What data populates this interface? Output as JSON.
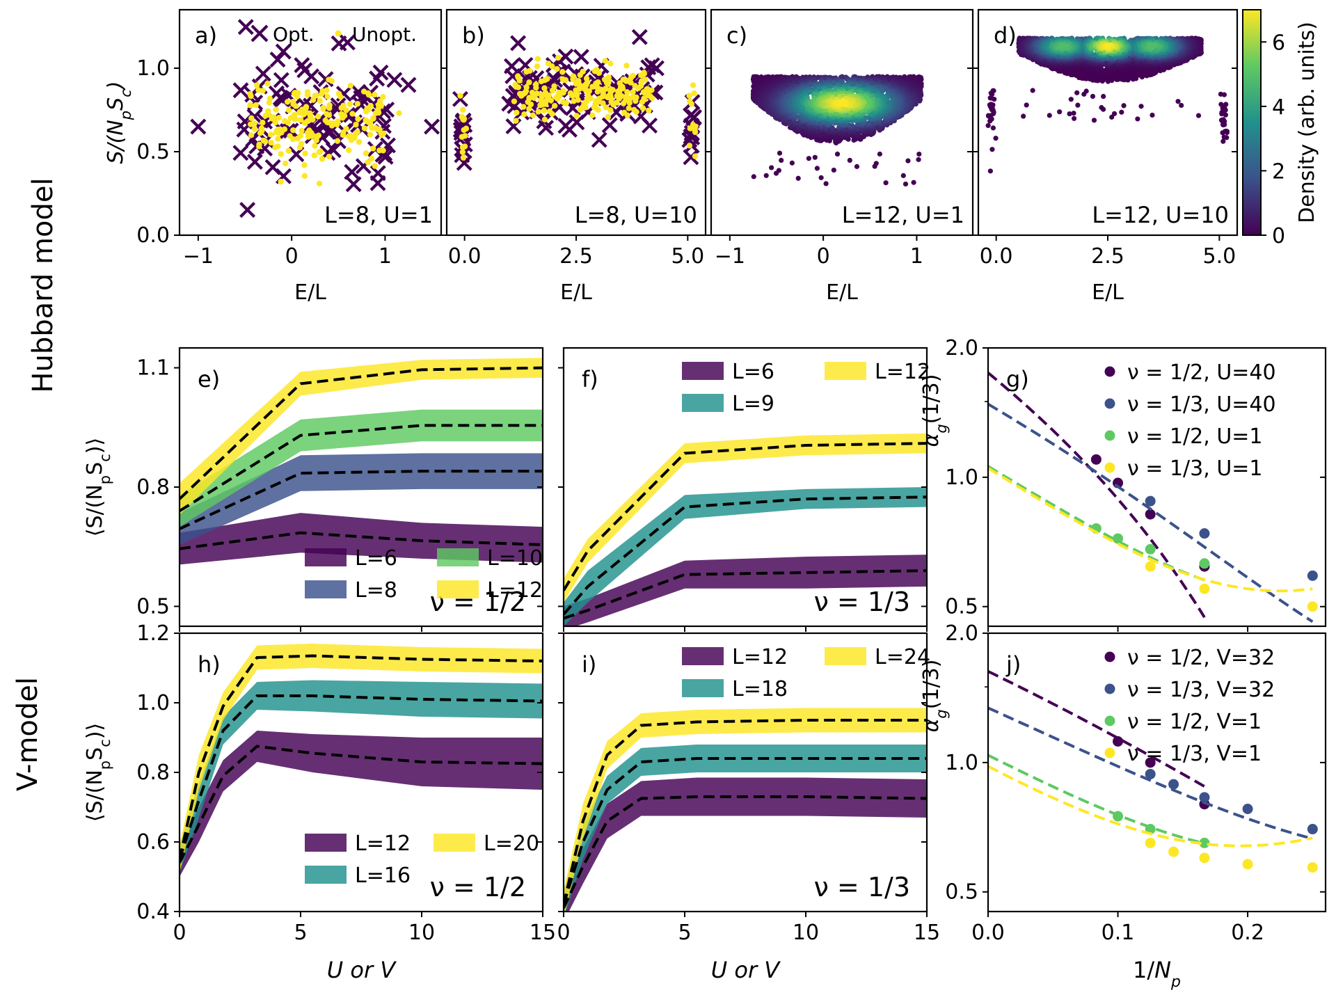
{
  "figure": {
    "row_labels": [
      "Hubbard model",
      "V-model"
    ],
    "colors": {
      "viridis_dark": "#440154",
      "viridis_blue": "#3b528b",
      "viridis_teal": "#21918c",
      "viridis_green": "#5ec962",
      "viridis_yellow": "#fde725",
      "dashed_line": "#000000"
    }
  },
  "chart_data": [
    {
      "id": "a",
      "panel_label": "a)",
      "type": "scatter",
      "annotation": "L=8, U=1",
      "xlabel": "E/L",
      "ylabel": "S/(N_p S_c)",
      "xlim": [
        -1.2,
        1.6
      ],
      "ylim": [
        0.0,
        1.35
      ],
      "xticks": [
        {
          "v": -1,
          "t": "−1"
        },
        {
          "v": 0,
          "t": "0"
        },
        {
          "v": 1,
          "t": "1"
        }
      ],
      "yticks": [
        {
          "v": 0.0,
          "t": "0.0"
        },
        {
          "v": 0.5,
          "t": "0.5"
        },
        {
          "v": 1.0,
          "t": "1.0"
        }
      ],
      "legend": [
        "Opt.",
        "Unopt."
      ],
      "cloud": {
        "x_range": [
          -0.55,
          1.1
        ],
        "y_center": 0.68,
        "y_spread": 0.2,
        "n_opt": 90,
        "n_unopt": 200
      },
      "opt_points": [
        [
          -1.0,
          0.65
        ],
        [
          1.5,
          0.65
        ],
        [
          1.1,
          0.93
        ],
        [
          1.25,
          0.9
        ]
      ],
      "unopt_points": [
        [
          1.15,
          0.73
        ]
      ]
    },
    {
      "id": "b",
      "panel_label": "b)",
      "type": "scatter",
      "annotation": "L=8, U=10",
      "xlabel": "E/L",
      "ylabel": "",
      "xlim": [
        -0.4,
        5.4
      ],
      "ylim": [
        0.0,
        1.35
      ],
      "xticks": [
        {
          "v": 0.0,
          "t": "0.0"
        },
        {
          "v": 2.5,
          "t": "2.5"
        },
        {
          "v": 5.0,
          "t": "5.0"
        }
      ],
      "yticks": [
        {
          "v": 0.0,
          "t": ""
        },
        {
          "v": 0.5,
          "t": ""
        },
        {
          "v": 1.0,
          "t": ""
        }
      ],
      "cloud": {
        "x_range": [
          1.0,
          4.3
        ],
        "y_center": 0.86,
        "y_spread": 0.12,
        "n_opt": 90,
        "n_unopt": 220
      },
      "clusters": [
        {
          "x": -0.05,
          "y": 0.6,
          "n": 14
        },
        {
          "x": 5.1,
          "y": 0.66,
          "n": 12
        }
      ],
      "opt_points": [
        [
          1.2,
          1.15
        ],
        [
          4.3,
          1.0
        ]
      ]
    },
    {
      "id": "c",
      "panel_label": "c)",
      "type": "density-scatter",
      "annotation": "L=12, U=1",
      "xlabel": "E/L",
      "ylabel": "",
      "xlim": [
        -1.2,
        1.6
      ],
      "ylim": [
        0.0,
        1.35
      ],
      "xticks": [
        {
          "v": -1,
          "t": "−1"
        },
        {
          "v": 0,
          "t": "0"
        },
        {
          "v": 1,
          "t": "1"
        }
      ],
      "yticks": [
        {
          "v": 0.0,
          "t": ""
        },
        {
          "v": 0.5,
          "t": ""
        },
        {
          "v": 1.0,
          "t": ""
        }
      ],
      "blob": {
        "x_range": [
          -0.75,
          1.05
        ],
        "y_top": 0.95,
        "y_bottom": 0.55,
        "peak_x": 0.2,
        "peak_y": 0.79
      }
    },
    {
      "id": "d",
      "panel_label": "d)",
      "type": "density-scatter",
      "annotation": "L=12, U=10",
      "xlabel": "E/L",
      "ylabel": "",
      "xlim": [
        -0.4,
        5.4
      ],
      "ylim": [
        0.0,
        1.35
      ],
      "xticks": [
        {
          "v": 0.0,
          "t": "0.0"
        },
        {
          "v": 2.5,
          "t": "2.5"
        },
        {
          "v": 5.0,
          "t": "5.0"
        }
      ],
      "yticks": [
        {
          "v": 0.0,
          "t": ""
        },
        {
          "v": 0.5,
          "t": ""
        },
        {
          "v": 1.0,
          "t": ""
        }
      ],
      "blob": {
        "x_range": [
          0.5,
          4.6
        ],
        "y_top": 1.18,
        "y_bottom": 0.92,
        "peaks_x": [
          1.5,
          2.5,
          3.5
        ],
        "peak_y": 1.13
      },
      "clusters": [
        {
          "x": -0.1,
          "y": 0.72,
          "n": 30
        },
        {
          "x": 5.1,
          "y": 0.72,
          "n": 30
        }
      ]
    },
    {
      "id": "colorbar",
      "type": "colorbar",
      "label": "Density (arb. units)",
      "range": [
        0,
        7
      ],
      "ticks": [
        "0",
        "2",
        "4",
        "6"
      ]
    },
    {
      "id": "e",
      "panel_label": "e)",
      "type": "line-band",
      "annotation": "ν = 1/2",
      "xlabel": "",
      "ylabel": "⟨S/(N_p S_c)⟩",
      "xlim": [
        0,
        15
      ],
      "ylim": [
        0.45,
        1.15
      ],
      "xticks": [
        {
          "v": 0,
          "t": ""
        },
        {
          "v": 5,
          "t": ""
        },
        {
          "v": 10,
          "t": ""
        },
        {
          "v": 15,
          "t": ""
        }
      ],
      "yticks": [
        {
          "v": 0.5,
          "t": "0.5"
        },
        {
          "v": 0.8,
          "t": "0.8"
        },
        {
          "v": 1.1,
          "t": "1.1"
        }
      ],
      "x": [
        0,
        5,
        10,
        15
      ],
      "series": [
        {
          "name": "L=6",
          "color": "#440154",
          "values": [
            0.645,
            0.685,
            0.665,
            0.655
          ],
          "band": [
            0.04,
            0.05,
            0.045,
            0.045
          ]
        },
        {
          "name": "L=8",
          "color": "#3b528b",
          "values": [
            0.695,
            0.835,
            0.84,
            0.84
          ],
          "band": [
            0.04,
            0.045,
            0.045,
            0.045
          ]
        },
        {
          "name": "L=10",
          "color": "#5ec962",
          "values": [
            0.74,
            0.93,
            0.955,
            0.955
          ],
          "band": [
            0.04,
            0.04,
            0.04,
            0.04
          ]
        },
        {
          "name": "L=12",
          "color": "#fde725",
          "values": [
            0.77,
            1.06,
            1.095,
            1.1
          ],
          "band": [
            0.04,
            0.03,
            0.025,
            0.025
          ]
        }
      ],
      "legend_position": "lower-right"
    },
    {
      "id": "f",
      "panel_label": "f)",
      "type": "line-band",
      "annotation": "ν = 1/3",
      "xlabel": "",
      "ylabel": "",
      "xlim": [
        0,
        15
      ],
      "ylim": [
        0.45,
        1.15
      ],
      "xticks": [
        {
          "v": 0,
          "t": ""
        },
        {
          "v": 5,
          "t": ""
        },
        {
          "v": 10,
          "t": ""
        },
        {
          "v": 15,
          "t": ""
        }
      ],
      "yticks": [
        {
          "v": 0.5,
          "t": ""
        },
        {
          "v": 0.8,
          "t": ""
        },
        {
          "v": 1.1,
          "t": ""
        }
      ],
      "x": [
        0,
        1,
        5,
        10,
        15
      ],
      "series": [
        {
          "name": "L=6",
          "color": "#440154",
          "values": [
            0.47,
            0.49,
            0.58,
            0.585,
            0.59
          ],
          "band": [
            0.03,
            0.03,
            0.035,
            0.04,
            0.04
          ]
        },
        {
          "name": "L=9",
          "color": "#21918c",
          "values": [
            0.48,
            0.55,
            0.75,
            0.77,
            0.775
          ],
          "band": [
            0.03,
            0.04,
            0.03,
            0.025,
            0.025
          ]
        },
        {
          "name": "L=12",
          "color": "#fde725",
          "values": [
            0.54,
            0.64,
            0.885,
            0.905,
            0.91
          ],
          "band": [
            0.03,
            0.03,
            0.025,
            0.025,
            0.025
          ]
        }
      ],
      "legend_position": "upper-right"
    },
    {
      "id": "g",
      "panel_label": "g)",
      "type": "scatter-fit",
      "xlabel": "",
      "ylabel": "α_g(1/3)",
      "xlim": [
        0,
        0.26
      ],
      "ylim": [
        0.45,
        2.0
      ],
      "yscale": "log",
      "xticks": [
        {
          "v": 0,
          "t": ""
        },
        {
          "v": 0.1,
          "t": ""
        },
        {
          "v": 0.2,
          "t": ""
        }
      ],
      "yticks": [
        {
          "v": 0.5,
          "t": "0.5"
        },
        {
          "v": 1.0,
          "t": "1.0"
        },
        {
          "v": 2.0,
          "t": "2.0"
        }
      ],
      "series": [
        {
          "name": "ν = 1/2, U=40",
          "color": "#440154",
          "x": [
            0.0833,
            0.1,
            0.125,
            0.1667
          ],
          "y": [
            1.1,
            0.97,
            0.82,
            0.62
          ],
          "fit": [
            1.75,
            -10.0,
            14.0
          ]
        },
        {
          "name": "ν = 1/3, U=40",
          "color": "#3b528b",
          "x": [
            0.125,
            0.1667,
            0.25
          ],
          "y": [
            0.88,
            0.74,
            0.59
          ],
          "fit": [
            1.48,
            -6.1,
            8.1
          ]
        },
        {
          "name": "ν = 1/2, U=1",
          "color": "#5ec962",
          "x": [
            0.0833,
            0.1,
            0.125,
            0.1667
          ],
          "y": [
            0.76,
            0.72,
            0.68,
            0.63
          ],
          "fit": [
            1.06,
            -4.4,
            9.0
          ]
        },
        {
          "name": "ν = 1/3, U=1",
          "color": "#fde725",
          "x": [
            0.125,
            0.1667,
            0.25
          ],
          "y": [
            0.62,
            0.55,
            0.5
          ],
          "fit": [
            1.05,
            -4.5,
            10.0
          ]
        }
      ]
    },
    {
      "id": "h",
      "panel_label": "h)",
      "type": "line-band",
      "annotation": "ν = 1/2",
      "xlabel": "U or V",
      "ylabel": "⟨S/(N_p S_c)⟩",
      "xlim": [
        0,
        15
      ],
      "ylim": [
        0.4,
        1.2
      ],
      "xticks": [
        {
          "v": 0,
          "t": "0"
        },
        {
          "v": 5,
          "t": "5"
        },
        {
          "v": 10,
          "t": "10"
        },
        {
          "v": 15,
          "t": "15"
        }
      ],
      "yticks": [
        {
          "v": 0.4,
          "t": "0.4"
        },
        {
          "v": 0.6,
          "t": "0.6"
        },
        {
          "v": 0.8,
          "t": "0.8"
        },
        {
          "v": 1.0,
          "t": "1.0"
        },
        {
          "v": 1.2,
          "t": "1.2"
        }
      ],
      "x": [
        0,
        0.8,
        1.8,
        3.2,
        5.5,
        10,
        15
      ],
      "series": [
        {
          "name": "L=12",
          "color": "#440154",
          "values": [
            0.54,
            0.65,
            0.79,
            0.875,
            0.855,
            0.83,
            0.825
          ],
          "band": [
            0.04,
            0.05,
            0.045,
            0.045,
            0.055,
            0.07,
            0.075
          ]
        },
        {
          "name": "L=16",
          "color": "#21918c",
          "values": [
            0.55,
            0.72,
            0.92,
            1.02,
            1.02,
            1.01,
            1.005
          ],
          "band": [
            0.04,
            0.05,
            0.04,
            0.04,
            0.045,
            0.05,
            0.05
          ]
        },
        {
          "name": "L=20",
          "color": "#fde725",
          "values": [
            0.55,
            0.8,
            0.99,
            1.13,
            1.135,
            1.125,
            1.12
          ],
          "band": [
            0.04,
            0.05,
            0.04,
            0.035,
            0.035,
            0.035,
            0.035
          ]
        }
      ],
      "legend_position": "lower-right"
    },
    {
      "id": "i",
      "panel_label": "i)",
      "type": "line-band",
      "annotation": "ν = 1/3",
      "xlabel": "U or V",
      "ylabel": "",
      "xlim": [
        0,
        15
      ],
      "ylim": [
        0.4,
        1.2
      ],
      "xticks": [
        {
          "v": 0,
          "t": "0"
        },
        {
          "v": 5,
          "t": "5"
        },
        {
          "v": 10,
          "t": "10"
        },
        {
          "v": 15,
          "t": "15"
        }
      ],
      "yticks": [
        {
          "v": 0.4,
          "t": ""
        },
        {
          "v": 0.6,
          "t": ""
        },
        {
          "v": 0.8,
          "t": ""
        },
        {
          "v": 1.0,
          "t": ""
        },
        {
          "v": 1.2,
          "t": ""
        }
      ],
      "x": [
        0,
        0.8,
        1.8,
        3.2,
        5.5,
        10,
        15
      ],
      "series": [
        {
          "name": "L=12",
          "color": "#440154",
          "values": [
            0.41,
            0.53,
            0.66,
            0.725,
            0.73,
            0.73,
            0.725
          ],
          "band": [
            0.04,
            0.05,
            0.05,
            0.05,
            0.055,
            0.055,
            0.055
          ]
        },
        {
          "name": "L=18",
          "color": "#21918c",
          "values": [
            0.42,
            0.6,
            0.75,
            0.83,
            0.84,
            0.84,
            0.84
          ],
          "band": [
            0.04,
            0.05,
            0.04,
            0.04,
            0.04,
            0.04,
            0.04
          ]
        },
        {
          "name": "L=24",
          "color": "#fde725",
          "values": [
            0.42,
            0.66,
            0.85,
            0.935,
            0.945,
            0.95,
            0.95
          ],
          "band": [
            0.04,
            0.05,
            0.04,
            0.035,
            0.035,
            0.035,
            0.035
          ]
        }
      ],
      "legend_position": "upper-right"
    },
    {
      "id": "j",
      "panel_label": "j)",
      "type": "scatter-fit",
      "xlabel": "1/N_p",
      "ylabel": "α_g(1/3)",
      "xlim": [
        0,
        0.26
      ],
      "ylim": [
        0.45,
        2.0
      ],
      "yscale": "log",
      "xticks": [
        {
          "v": 0,
          "t": "0.0"
        },
        {
          "v": 0.1,
          "t": "0.1"
        },
        {
          "v": 0.2,
          "t": "0.2"
        }
      ],
      "yticks": [
        {
          "v": 0.5,
          "t": "0.5"
        },
        {
          "v": 1.0,
          "t": "1.0"
        },
        {
          "v": 2.0,
          "t": "2.0"
        }
      ],
      "series": [
        {
          "name": "ν = 1/2, V=32",
          "color": "#440154",
          "x": [
            0.1,
            0.125,
            0.1667
          ],
          "y": [
            1.12,
            1.0,
            0.8
          ],
          "fit": [
            1.63,
            -5.5,
            6.0
          ]
        },
        {
          "name": "ν = 1/3, V=32",
          "color": "#3b528b",
          "x": [
            0.125,
            0.1429,
            0.1667,
            0.2,
            0.25
          ],
          "y": [
            0.94,
            0.89,
            0.83,
            0.78,
            0.7
          ],
          "fit": [
            1.34,
            -4.2,
            6.0
          ]
        },
        {
          "name": "ν = 1/2, V=1",
          "color": "#5ec962",
          "x": [
            0.1,
            0.125,
            0.1667
          ],
          "y": [
            0.75,
            0.7,
            0.65
          ],
          "fit": [
            1.04,
            -3.6,
            7.5
          ]
        },
        {
          "name": "ν = 1/3, V=1",
          "color": "#fde725",
          "x": [
            0.125,
            0.1429,
            0.1667,
            0.2,
            0.25
          ],
          "y": [
            0.65,
            0.62,
            0.6,
            0.58,
            0.57
          ],
          "fit": [
            0.98,
            -3.5,
            9.0
          ]
        }
      ]
    }
  ]
}
